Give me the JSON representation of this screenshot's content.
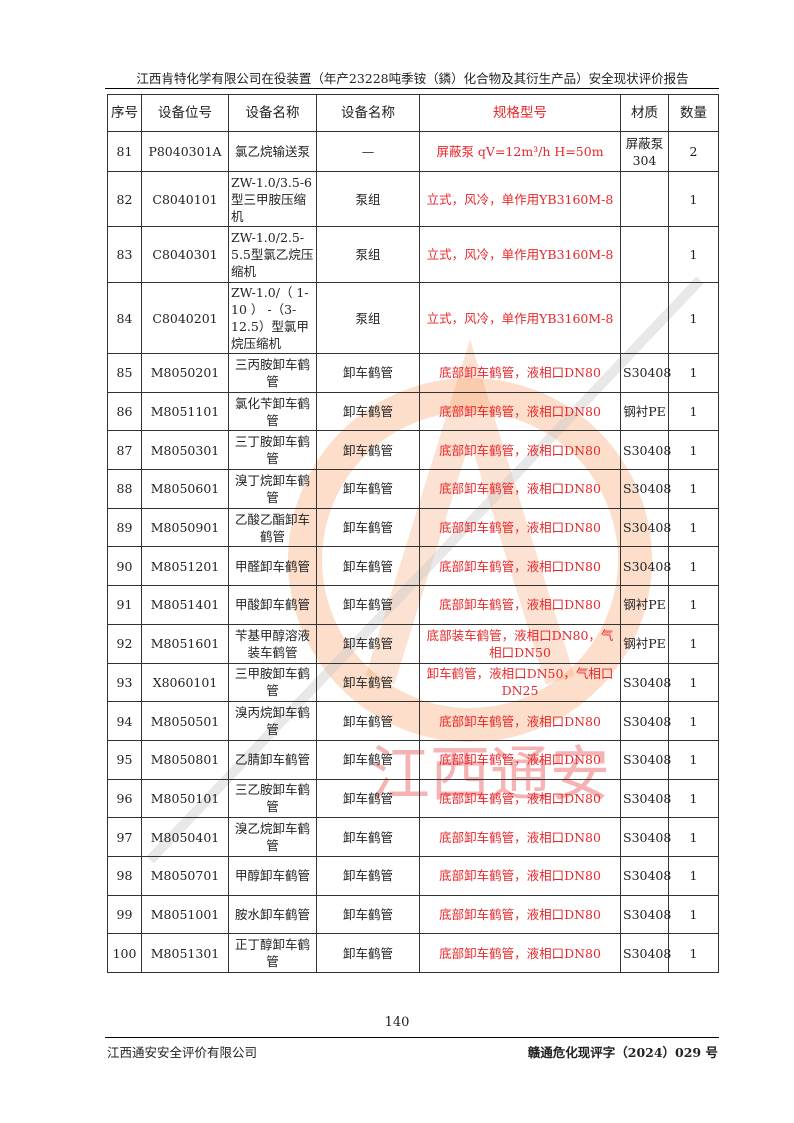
{
  "header": {
    "title": "江西肯特化学有限公司在役装置（年产23228吨季铵（鏻）化合物及其衍生产品）安全现状评价报告"
  },
  "watermark": {
    "text": "江西通安",
    "colors": {
      "circle": "#f5a06a",
      "text": "#e8272a",
      "lines": "#c8c8c8"
    }
  },
  "table": {
    "columns": [
      "序号",
      "设备位号",
      "设备名称",
      "设备名称",
      "规格型号",
      "材质",
      "数量"
    ],
    "rows": [
      {
        "no": "81",
        "tag": "P8040301A",
        "name": "氯乙烷输送泵",
        "type": "—",
        "spec": "屏蔽泵 qV=12m³/h H=50m",
        "material": "屏蔽泵304",
        "qty": "2"
      },
      {
        "no": "82",
        "tag": "C8040101",
        "name": "ZW-1.0/3.5-6型三甲胺压缩机",
        "type": "泵组",
        "spec": "立式，风冷，单作用YB3160M-8",
        "material": "",
        "qty": "1"
      },
      {
        "no": "83",
        "tag": "C8040301",
        "name": "ZW-1.0/2.5-5.5型氯乙烷压缩机",
        "type": "泵组",
        "spec": "立式，风冷，单作用YB3160M-8",
        "material": "",
        "qty": "1"
      },
      {
        "no": "84",
        "tag": "C8040201",
        "name": "ZW-1.0/（ 1-10 ） -（3-12.5）型氯甲烷压缩机",
        "type": "泵组",
        "spec": "立式，风冷，单作用YB3160M-8",
        "material": "",
        "qty": "1"
      },
      {
        "no": "85",
        "tag": "M8050201",
        "name": "三丙胺卸车鹤管",
        "type": "卸车鹤管",
        "spec": "底部卸车鹤管，液相口DN80",
        "material": "S30408",
        "qty": "1"
      },
      {
        "no": "86",
        "tag": "M8051101",
        "name": "氯化苄卸车鹤管",
        "type": "卸车鹤管",
        "spec": "底部卸车鹤管，液相口DN80",
        "material": "钢衬PE",
        "qty": "1"
      },
      {
        "no": "87",
        "tag": "M8050301",
        "name": "三丁胺卸车鹤管",
        "type": "卸车鹤管",
        "spec": "底部卸车鹤管，液相口DN80",
        "material": "S30408",
        "qty": "1"
      },
      {
        "no": "88",
        "tag": "M8050601",
        "name": "溴丁烷卸车鹤管",
        "type": "卸车鹤管",
        "spec": "底部卸车鹤管，液相口DN80",
        "material": "S30408",
        "qty": "1"
      },
      {
        "no": "89",
        "tag": "M8050901",
        "name": "乙酸乙酯卸车鹤管",
        "type": "卸车鹤管",
        "spec": "底部卸车鹤管，液相口DN80",
        "material": "S30408",
        "qty": "1"
      },
      {
        "no": "90",
        "tag": "M8051201",
        "name": "甲醛卸车鹤管",
        "type": "卸车鹤管",
        "spec": "底部卸车鹤管，液相口DN80",
        "material": "S30408",
        "qty": "1"
      },
      {
        "no": "91",
        "tag": "M8051401",
        "name": "甲酸卸车鹤管",
        "type": "卸车鹤管",
        "spec": "底部卸车鹤管，液相口DN80",
        "material": "钢衬PE",
        "qty": "1"
      },
      {
        "no": "92",
        "tag": "M8051601",
        "name": "苄基甲醇溶液装车鹤管",
        "type": "卸车鹤管",
        "spec": "底部装车鹤管，液相口DN80，气相口DN50",
        "material": "钢衬PE",
        "qty": "1"
      },
      {
        "no": "93",
        "tag": "X8060101",
        "name": "三甲胺卸车鹤管",
        "type": "卸车鹤管",
        "spec": "卸车鹤管，液相口DN50，气相口DN25",
        "material": "S30408",
        "qty": "1"
      },
      {
        "no": "94",
        "tag": "M8050501",
        "name": "溴丙烷卸车鹤管",
        "type": "卸车鹤管",
        "spec": "底部卸车鹤管，液相口DN80",
        "material": "S30408",
        "qty": "1"
      },
      {
        "no": "95",
        "tag": "M8050801",
        "name": "乙腈卸车鹤管",
        "type": "卸车鹤管",
        "spec": "底部卸车鹤管，液相口DN80",
        "material": "S30408",
        "qty": "1"
      },
      {
        "no": "96",
        "tag": "M8050101",
        "name": "三乙胺卸车鹤管",
        "type": "卸车鹤管",
        "spec": "底部卸车鹤管，液相口DN80",
        "material": "S30408",
        "qty": "1"
      },
      {
        "no": "97",
        "tag": "M8050401",
        "name": "溴乙烷卸车鹤管",
        "type": "卸车鹤管",
        "spec": "底部卸车鹤管，液相口DN80",
        "material": "S30408",
        "qty": "1"
      },
      {
        "no": "98",
        "tag": "M8050701",
        "name": "甲醇卸车鹤管",
        "type": "卸车鹤管",
        "spec": "底部卸车鹤管，液相口DN80",
        "material": "S30408",
        "qty": "1"
      },
      {
        "no": "99",
        "tag": "M8051001",
        "name": "胺水卸车鹤管",
        "type": "卸车鹤管",
        "spec": "底部卸车鹤管，液相口DN80",
        "material": "S30408",
        "qty": "1"
      },
      {
        "no": "100",
        "tag": "M8051301",
        "name": "正丁醇卸车鹤管",
        "type": "卸车鹤管",
        "spec": "底部卸车鹤管，液相口DN80",
        "material": "S30408",
        "qty": "1"
      }
    ]
  },
  "footer": {
    "page_number": "140",
    "company": "江西通安安全评价有限公司",
    "doc_number": "赣通危化现评字（2024）029 号"
  }
}
